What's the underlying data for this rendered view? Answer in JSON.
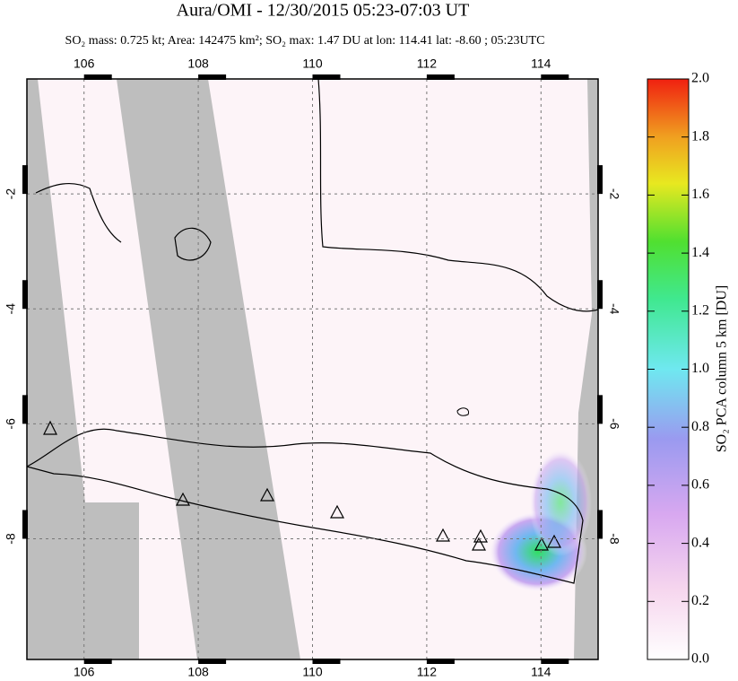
{
  "chart_data": {
    "type": "map",
    "title": "Aura/OMI - 12/30/2015 05:23-07:03 UT",
    "subtitle": "SO₂ mass: 0.725 kt; Area: 142475 km²; SO₂ max: 1.47 DU at lon: 114.41 lat: -8.60 ; 05:23UTC",
    "xlim": [
      105,
      115
    ],
    "xticks": [
      106,
      108,
      110,
      112,
      114
    ],
    "ylim": [
      -10.1,
      0
    ],
    "yticks": [
      -2,
      -4,
      -6,
      -8
    ],
    "colorbar": {
      "label": "SO₂ PCA column 5 km [DU]",
      "lim": [
        0,
        2
      ],
      "ticks": [
        {
          "value": 0,
          "label": "0.0"
        },
        {
          "value": 0.2,
          "label": "0.2"
        },
        {
          "value": 0.4,
          "label": "0.4"
        },
        {
          "value": 0.6,
          "label": "0.6"
        },
        {
          "value": 0.8,
          "label": "0.8"
        },
        {
          "value": 1,
          "label": "1.0"
        },
        {
          "value": 1.2,
          "label": "1.2"
        },
        {
          "value": 1.4,
          "label": "1.4"
        },
        {
          "value": 1.6,
          "label": "1.6"
        },
        {
          "value": 1.8,
          "label": "1.8"
        },
        {
          "value": 2,
          "label": "2.0"
        }
      ]
    },
    "grid": true
  }
}
